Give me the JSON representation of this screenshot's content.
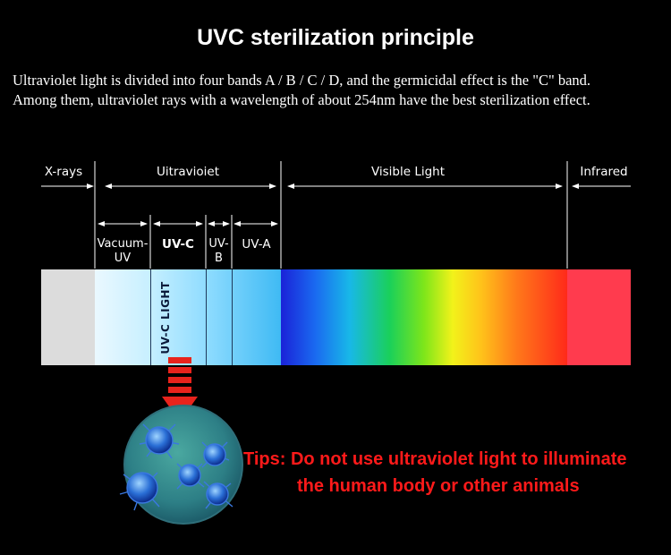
{
  "title": "UVC sterilization principle",
  "description": {
    "line1": "Ultraviolet light is divided into four bands A / B / C / D, and the germicidal effect is the \"C\" band.",
    "line2": "Among them, ultraviolet rays with a wavelength of about 254nm have the best sterilization effect."
  },
  "bands": {
    "xrays": "X-rays",
    "ultraviolet": "Uitravioiet",
    "visible": "Visible Light",
    "infrared": "Infrared"
  },
  "uv_sub": {
    "vacuum_l1": "Vacuum-",
    "vacuum_l2": "UV",
    "uvc": "UV-C",
    "uvb_l1": "UV-",
    "uvb_l2": "B",
    "uva": "UV-A"
  },
  "uvc_light_label": "UV-C LIGHT",
  "tips": {
    "line1": "Tips: Do not use ultraviolet light to illuminate",
    "line2": "the human body or other animals"
  },
  "colors": {
    "background": "#000000",
    "tips": "#ff1a1a",
    "arrow": "#e8231c",
    "xray_band": "#dcdcdc",
    "infrared_band": "#ff3b4e"
  }
}
